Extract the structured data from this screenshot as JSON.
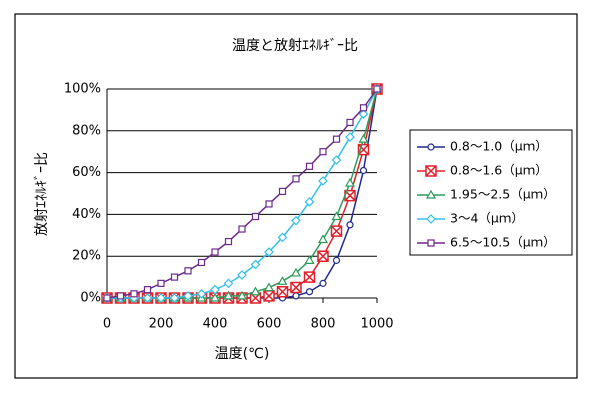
{
  "chart_data": {
    "type": "line",
    "title": "温度と放射ｴﾈﾙｷﾞｰ比",
    "x_label": "温度(℃)",
    "y_label": "放射ｴﾈﾙｷﾞｰ比",
    "x": [
      0,
      50,
      100,
      150,
      200,
      250,
      300,
      350,
      400,
      450,
      500,
      550,
      600,
      650,
      700,
      750,
      800,
      850,
      900,
      950,
      1000
    ],
    "xlim": [
      0,
      1000
    ],
    "xticks": [
      0,
      200,
      400,
      600,
      800,
      1000
    ],
    "ylim": [
      0,
      100
    ],
    "yticks": [
      {
        "value": 0,
        "label": "0%"
      },
      {
        "value": 20,
        "label": "20%"
      },
      {
        "value": 40,
        "label": "40%"
      },
      {
        "value": 60,
        "label": "60%"
      },
      {
        "value": 80,
        "label": "80%"
      },
      {
        "value": 100,
        "label": "100%"
      }
    ],
    "grid": true,
    "legend": "right",
    "series": [
      {
        "name": "0.8～1.0（μｍ）",
        "color": "#1f2a8c",
        "marker": "circle",
        "values": [
          0,
          0,
          0,
          0,
          0,
          0,
          0,
          0,
          0,
          0,
          0,
          0,
          0,
          0,
          1,
          3,
          7,
          18,
          35,
          61,
          100
        ]
      },
      {
        "name": "0.8～1.6（μｍ）",
        "color": "#e0202a",
        "marker": "xsquare",
        "values": [
          0,
          0,
          0,
          0,
          0,
          0,
          0,
          0,
          0,
          0,
          0,
          0,
          1,
          3,
          5,
          10,
          20,
          32,
          49,
          71,
          100
        ]
      },
      {
        "name": "1.95～2.5（μｍ）",
        "color": "#2e9a5a",
        "marker": "triangle",
        "values": [
          0,
          0,
          0,
          0,
          0,
          0,
          0,
          0,
          0,
          1,
          1,
          3,
          5,
          8,
          12,
          18,
          28,
          39,
          55,
          76,
          100
        ]
      },
      {
        "name": "3～4（μｍ）",
        "color": "#33c0e8",
        "marker": "diamond",
        "values": [
          0,
          0,
          0,
          0,
          0,
          0,
          1,
          2,
          4,
          7,
          11,
          16,
          22,
          29,
          37,
          46,
          56,
          66,
          77,
          88,
          100
        ]
      },
      {
        "name": "6.5～10.5（μｍ）",
        "color": "#6a2a8a",
        "marker": "square",
        "values": [
          0,
          1,
          2,
          4,
          7,
          10,
          13,
          17,
          22,
          27,
          33,
          39,
          45,
          51,
          57,
          63,
          70,
          76,
          84,
          91,
          100
        ]
      }
    ]
  }
}
